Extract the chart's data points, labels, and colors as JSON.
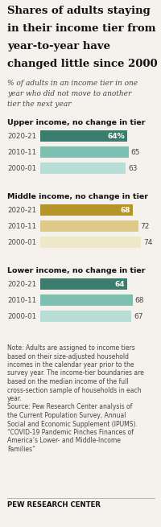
{
  "title": "Shares of adults staying\nin their income tier from\nyear-to-year have\nchanged little since 2000",
  "subtitle": "% of adults in an income tier in one\nyear who did not move to another\ntier the next year",
  "sections": [
    {
      "label": "Upper income, no change in tier",
      "bars": [
        {
          "year": "2020-21",
          "value": 64,
          "color": "#3a7d6e",
          "text_color": "white",
          "label_suffix": "%"
        },
        {
          "year": "2010-11",
          "value": 65,
          "color": "#7dbfb0",
          "text_color": "#555555",
          "label_suffix": ""
        },
        {
          "year": "2000-01",
          "value": 63,
          "color": "#b8ddd7",
          "text_color": "#555555",
          "label_suffix": ""
        }
      ]
    },
    {
      "label": "Middle income, no change in tier",
      "bars": [
        {
          "year": "2020-21",
          "value": 68,
          "color": "#b5952a",
          "text_color": "white",
          "label_suffix": ""
        },
        {
          "year": "2010-11",
          "value": 72,
          "color": "#ddc98a",
          "text_color": "#555555",
          "label_suffix": ""
        },
        {
          "year": "2000-01",
          "value": 74,
          "color": "#ede8c8",
          "text_color": "#555555",
          "label_suffix": ""
        }
      ]
    },
    {
      "label": "Lower income, no change in tier",
      "bars": [
        {
          "year": "2020-21",
          "value": 64,
          "color": "#3a7d6e",
          "text_color": "white",
          "label_suffix": ""
        },
        {
          "year": "2010-11",
          "value": 68,
          "color": "#7dbfb0",
          "text_color": "#555555",
          "label_suffix": ""
        },
        {
          "year": "2000-01",
          "value": 67,
          "color": "#b8ddd7",
          "text_color": "#555555",
          "label_suffix": ""
        }
      ]
    }
  ],
  "note_lines": [
    "Note: Adults are assigned to income tiers",
    "based on their size-adjusted household",
    "incomes in the calendar year prior to the",
    "survey year. The income-tier boundaries are",
    "based on the median income of the full",
    "cross-section sample of households in each",
    "year.",
    "Source: Pew Research Center analysis of",
    "the Current Population Survey, Annual",
    "Social and Economic Supplement (IPUMS).",
    "“COVID-19 Pandemic Pinches Finances of",
    "America’s Lower- and Middle-Income",
    "Families”"
  ],
  "footer": "PEW RESEARCH CENTER",
  "max_value": 80,
  "bg_color": "#f5f2ed"
}
